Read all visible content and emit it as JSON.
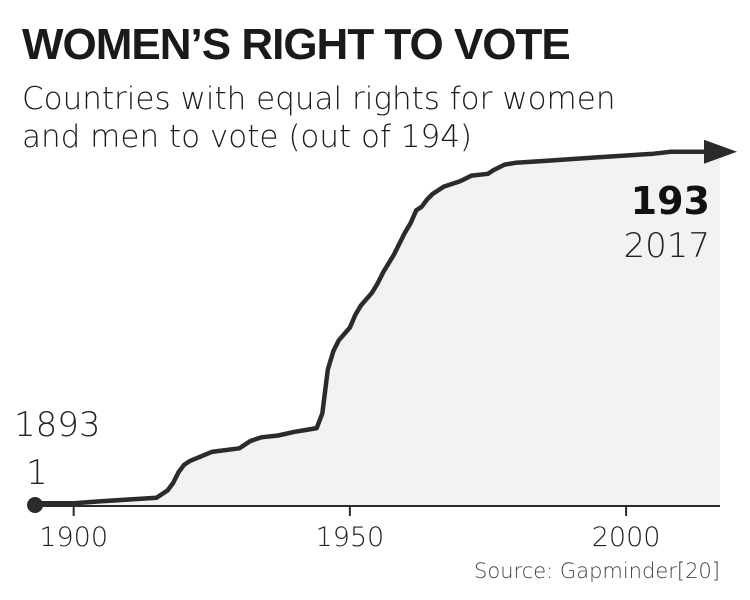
{
  "chart_data": {
    "type": "area",
    "title": "WOMEN’S RIGHT TO VOTE",
    "subtitle": "Countries with equal rights for women and men to vote (out of 194)",
    "xlabel": "",
    "ylabel": "",
    "xlim": [
      1893,
      2017
    ],
    "ylim": [
      0,
      194
    ],
    "x_ticks": [
      "1900",
      "1950",
      "2000"
    ],
    "grid": false,
    "legend": "none",
    "series": [
      {
        "x": [
          1893,
          1900,
          1905,
          1910,
          1915,
          1917,
          1918,
          1919,
          1920,
          1921,
          1925,
          1930,
          1931,
          1932,
          1934,
          1937,
          1940,
          1942,
          1944,
          1945,
          1946,
          1947,
          1948,
          1950,
          1951,
          1952,
          1954,
          1955,
          1956,
          1958,
          1959,
          1960,
          1961,
          1962,
          1963,
          1964,
          1965,
          1967,
          1970,
          1972,
          1975,
          1976,
          1978,
          1980,
          1985,
          1990,
          1995,
          2000,
          2005,
          2008,
          2017
        ],
        "values": [
          1,
          1,
          2,
          3,
          4,
          8,
          12,
          18,
          22,
          24,
          29,
          31,
          33,
          35,
          37,
          38,
          40,
          41,
          42,
          50,
          74,
          84,
          90,
          97,
          104,
          109,
          116,
          121,
          127,
          137,
          143,
          149,
          154,
          161,
          163,
          167,
          170,
          174,
          177,
          180,
          181,
          183,
          186,
          187,
          188,
          189,
          190,
          191,
          192,
          193,
          193
        ]
      }
    ],
    "colors": {
      "line": "#2b2b2b",
      "fill": "#f2f2f2",
      "axis": "#2b2b2b"
    },
    "annotations": {
      "start_year": "1893",
      "start_value": "1",
      "end_value": "193",
      "end_year": "2017"
    },
    "source": "Source: Gapminder[20]"
  }
}
